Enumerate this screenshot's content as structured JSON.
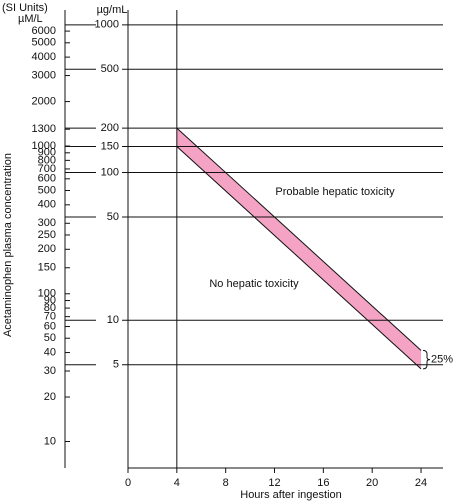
{
  "chart_data": {
    "type": "line",
    "log_scale": true,
    "grid": true,
    "header_left": "(SI Units)",
    "y2label": "µM/L",
    "y2_title": "µg/mL",
    "ylabel": "Acetaminophen plasma concentration",
    "xlabel": "Hours after ingestion",
    "x": [
      4,
      24
    ],
    "series": [
      {
        "color": "#111111",
        "values": [
          200,
          6.25
        ]
      },
      {
        "color": "#111111",
        "values": [
          150,
          4.69
        ]
      }
    ],
    "band_color": "#f4a3c4",
    "annotations": [
      "Probable hepatic toxicity",
      "No hepatic toxicity",
      "25%"
    ],
    "xlim": [
      0,
      25.8
    ],
    "xticks": [
      0,
      4,
      8,
      12,
      16,
      20,
      24
    ],
    "ylim": [
      1,
      1300
    ],
    "yticks": [
      1000,
      500,
      200,
      150,
      100,
      50,
      10,
      5
    ],
    "y2lim": [
      6.615,
      8600
    ],
    "y2ticks": [
      6000,
      5000,
      4000,
      3000,
      2000,
      1300,
      1000,
      900,
      800,
      700,
      600,
      500,
      400,
      300,
      250,
      200,
      150,
      100,
      90,
      80,
      70,
      60,
      50,
      40,
      30,
      20,
      10
    ]
  }
}
